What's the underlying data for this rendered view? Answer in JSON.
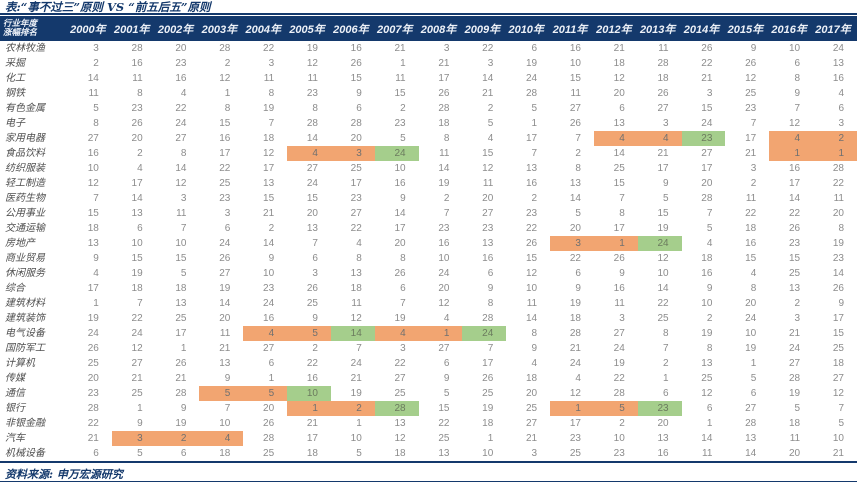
{
  "title": "表:“事不过三”原则 VS “前五后五”原则",
  "header": {
    "corner_line1": "行业年度",
    "corner_line2": "涨幅排名",
    "years": [
      "2000年",
      "2001年",
      "2002年",
      "2003年",
      "2004年",
      "2005年",
      "2006年",
      "2007年",
      "2008年",
      "2009年",
      "2010年",
      "2011年",
      "2012年",
      "2013年",
      "2014年",
      "2015年",
      "2016年",
      "2017年"
    ]
  },
  "legend": {
    "orange_meaning": "highlight-orange",
    "green_meaning": "highlight-green"
  },
  "colors": {
    "navy": "#14396C",
    "orange": "#F2A571",
    "green": "#A5CE8C",
    "number_gray": "#8C8C8C"
  },
  "rows": [
    {
      "label": "农林牧渔",
      "values": [
        3,
        28,
        20,
        28,
        22,
        19,
        16,
        21,
        3,
        22,
        6,
        16,
        21,
        11,
        26,
        9,
        10,
        24
      ],
      "marks": {}
    },
    {
      "label": "采掘",
      "values": [
        2,
        16,
        23,
        2,
        3,
        12,
        26,
        1,
        21,
        3,
        19,
        10,
        18,
        28,
        22,
        26,
        6,
        13
      ],
      "marks": {}
    },
    {
      "label": "化工",
      "values": [
        14,
        11,
        16,
        12,
        11,
        11,
        15,
        11,
        17,
        14,
        24,
        15,
        12,
        18,
        21,
        12,
        8,
        16
      ],
      "marks": {}
    },
    {
      "label": "钢铁",
      "values": [
        11,
        8,
        4,
        1,
        8,
        23,
        9,
        15,
        26,
        21,
        28,
        11,
        20,
        26,
        3,
        25,
        9,
        4
      ],
      "marks": {}
    },
    {
      "label": "有色金属",
      "values": [
        5,
        23,
        22,
        8,
        19,
        8,
        6,
        2,
        28,
        2,
        5,
        27,
        6,
        27,
        15,
        23,
        7,
        6
      ],
      "marks": {}
    },
    {
      "label": "电子",
      "values": [
        8,
        26,
        24,
        15,
        7,
        28,
        28,
        23,
        18,
        5,
        1,
        26,
        13,
        3,
        24,
        7,
        12,
        3
      ],
      "marks": {}
    },
    {
      "label": "家用电器",
      "values": [
        27,
        20,
        27,
        16,
        18,
        14,
        20,
        5,
        8,
        4,
        17,
        7,
        4,
        4,
        23,
        17,
        4,
        2
      ],
      "marks": {
        "12": "o",
        "13": "o",
        "14": "g",
        "16": "o",
        "17": "o"
      }
    },
    {
      "label": "食品饮料",
      "values": [
        16,
        2,
        8,
        17,
        12,
        4,
        3,
        24,
        11,
        15,
        7,
        2,
        14,
        21,
        27,
        21,
        1,
        1
      ],
      "marks": {
        "5": "o",
        "6": "o",
        "7": "g",
        "16": "o",
        "17": "o"
      }
    },
    {
      "label": "纺织服装",
      "values": [
        10,
        4,
        14,
        22,
        17,
        27,
        25,
        10,
        14,
        12,
        13,
        8,
        25,
        17,
        17,
        3,
        16,
        28
      ],
      "marks": {}
    },
    {
      "label": "轻工制造",
      "values": [
        12,
        17,
        12,
        25,
        13,
        24,
        17,
        16,
        19,
        11,
        16,
        13,
        15,
        9,
        20,
        2,
        17,
        22
      ],
      "marks": {}
    },
    {
      "label": "医药生物",
      "values": [
        7,
        14,
        3,
        23,
        15,
        15,
        23,
        9,
        2,
        20,
        2,
        14,
        7,
        5,
        28,
        11,
        14,
        11
      ],
      "marks": {}
    },
    {
      "label": "公用事业",
      "values": [
        15,
        13,
        11,
        3,
        21,
        20,
        27,
        14,
        7,
        27,
        23,
        5,
        8,
        15,
        7,
        22,
        22,
        20
      ],
      "marks": {}
    },
    {
      "label": "交通运输",
      "values": [
        18,
        6,
        7,
        6,
        2,
        13,
        22,
        17,
        23,
        23,
        22,
        20,
        17,
        19,
        5,
        18,
        26,
        8
      ],
      "marks": {}
    },
    {
      "label": "房地产",
      "values": [
        13,
        10,
        10,
        24,
        14,
        7,
        4,
        20,
        16,
        13,
        26,
        3,
        1,
        24,
        4,
        16,
        23,
        19
      ],
      "marks": {
        "11": "o",
        "12": "o",
        "13": "g"
      }
    },
    {
      "label": "商业贸易",
      "values": [
        9,
        15,
        15,
        26,
        9,
        6,
        8,
        8,
        10,
        16,
        15,
        22,
        26,
        12,
        18,
        15,
        15,
        23
      ],
      "marks": {}
    },
    {
      "label": "休闲服务",
      "values": [
        4,
        19,
        5,
        27,
        10,
        3,
        13,
        26,
        24,
        6,
        12,
        6,
        9,
        10,
        16,
        4,
        25,
        14
      ],
      "marks": {}
    },
    {
      "label": "综合",
      "values": [
        17,
        18,
        18,
        19,
        23,
        26,
        18,
        6,
        20,
        9,
        10,
        9,
        16,
        14,
        9,
        8,
        13,
        26
      ],
      "marks": {}
    },
    {
      "label": "建筑材料",
      "values": [
        1,
        7,
        13,
        14,
        24,
        25,
        11,
        7,
        12,
        8,
        11,
        19,
        11,
        22,
        10,
        20,
        2,
        9
      ],
      "marks": {}
    },
    {
      "label": "建筑装饰",
      "values": [
        19,
        22,
        25,
        20,
        16,
        9,
        12,
        19,
        4,
        28,
        14,
        18,
        3,
        25,
        2,
        24,
        3,
        17
      ],
      "marks": {}
    },
    {
      "label": "电气设备",
      "values": [
        24,
        24,
        17,
        11,
        4,
        5,
        14,
        4,
        1,
        24,
        8,
        28,
        27,
        8,
        19,
        10,
        21,
        15
      ],
      "marks": {
        "4": "o",
        "5": "o",
        "6": "g",
        "7": "o",
        "8": "o",
        "9": "g"
      }
    },
    {
      "label": "国防军工",
      "values": [
        26,
        12,
        1,
        21,
        27,
        2,
        7,
        3,
        27,
        7,
        9,
        21,
        24,
        7,
        8,
        19,
        24,
        25
      ],
      "marks": {}
    },
    {
      "label": "计算机",
      "values": [
        25,
        27,
        26,
        13,
        6,
        22,
        24,
        22,
        6,
        17,
        4,
        24,
        19,
        2,
        13,
        1,
        27,
        18
      ],
      "marks": {}
    },
    {
      "label": "传媒",
      "values": [
        20,
        21,
        21,
        9,
        1,
        16,
        21,
        27,
        9,
        26,
        18,
        4,
        22,
        1,
        25,
        5,
        28,
        27
      ],
      "marks": {}
    },
    {
      "label": "通信",
      "values": [
        23,
        25,
        28,
        5,
        5,
        10,
        19,
        25,
        5,
        25,
        20,
        12,
        28,
        6,
        12,
        6,
        19,
        12
      ],
      "marks": {
        "3": "o",
        "4": "o",
        "5": "g"
      }
    },
    {
      "label": "银行",
      "values": [
        28,
        1,
        9,
        7,
        20,
        1,
        2,
        28,
        15,
        19,
        25,
        1,
        5,
        23,
        6,
        27,
        5,
        7
      ],
      "marks": {
        "5": "o",
        "6": "o",
        "7": "g",
        "11": "o",
        "12": "o",
        "13": "g"
      }
    },
    {
      "label": "非银金融",
      "values": [
        22,
        9,
        19,
        10,
        26,
        21,
        1,
        13,
        22,
        18,
        27,
        17,
        2,
        20,
        1,
        28,
        18,
        5
      ],
      "marks": {}
    },
    {
      "label": "汽车",
      "values": [
        21,
        3,
        2,
        4,
        28,
        17,
        10,
        12,
        25,
        1,
        21,
        23,
        10,
        13,
        14,
        13,
        11,
        10
      ],
      "marks": {
        "1": "o",
        "2": "o",
        "3": "o"
      }
    },
    {
      "label": "机械设备",
      "values": [
        6,
        5,
        6,
        18,
        25,
        18,
        5,
        18,
        13,
        10,
        3,
        25,
        23,
        16,
        11,
        14,
        20,
        21
      ],
      "marks": {}
    }
  ],
  "footer": {
    "source_label": "资料来源:",
    "source_value": "申万宏源研究"
  }
}
